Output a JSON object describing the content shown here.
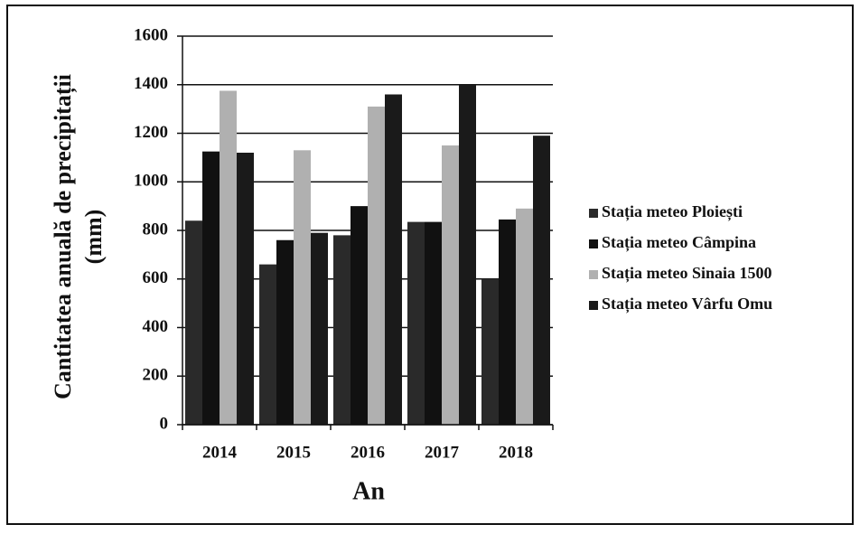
{
  "chart_data": {
    "type": "bar",
    "x_label": "An",
    "y_label": [
      "Cantitatea  anuală de precipitații",
      "(mm)"
    ],
    "categories": [
      "2014",
      "2015",
      "2016",
      "2017",
      "2018"
    ],
    "series": [
      {
        "name": "Stația meteo Ploiești",
        "color": "#2a2a2a",
        "values": [
          840,
          660,
          780,
          835,
          600
        ]
      },
      {
        "name": "Stația meteo Câmpina",
        "color": "#111111",
        "values": [
          1125,
          760,
          900,
          835,
          845
        ]
      },
      {
        "name": "Stația meteo Sinaia  1500",
        "color": "#b0b0b0",
        "values": [
          1375,
          1130,
          1310,
          1150,
          890
        ]
      },
      {
        "name": "Stația meteo Vârfu Omu",
        "color": "#1a1a1a",
        "values": [
          1120,
          790,
          1360,
          1400,
          1190
        ]
      }
    ],
    "ylim": [
      0,
      1600
    ],
    "yticks": [
      0,
      200,
      400,
      600,
      800,
      1000,
      1200,
      1400,
      1600
    ],
    "grid": true,
    "legend": "right"
  }
}
